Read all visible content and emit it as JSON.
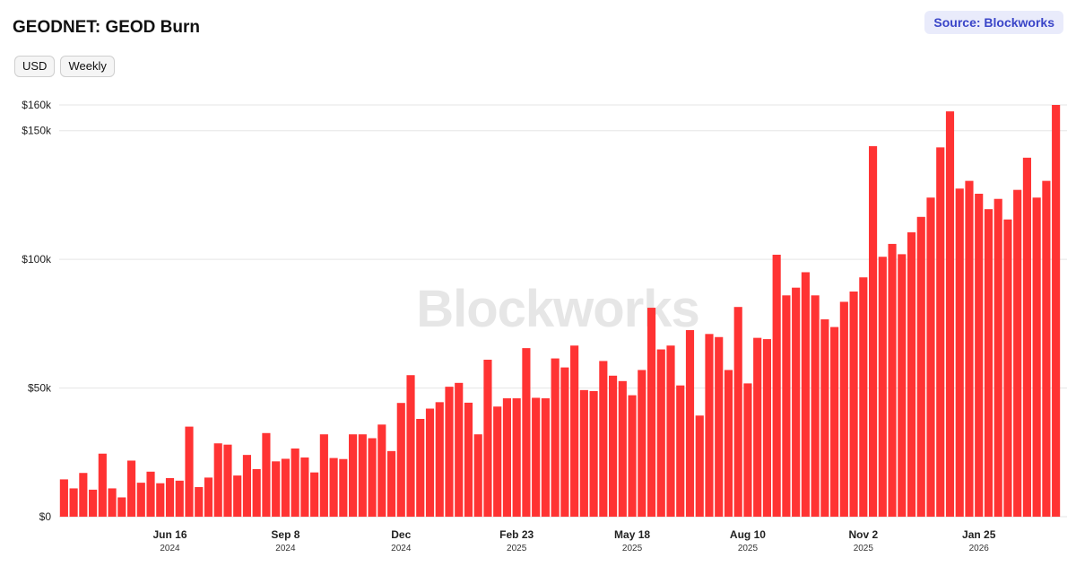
{
  "header": {
    "title": "GEODNET: GEOD Burn",
    "source_label": "Source: Blockworks"
  },
  "controls": {
    "currency_label": "USD",
    "interval_label": "Weekly"
  },
  "watermark": "Blockworks",
  "colors": {
    "bar": "#ff3333",
    "grid": "#e5e5e5",
    "source_bg": "#e9ebfb",
    "source_text": "#3a45c8"
  },
  "chart_data": {
    "type": "bar",
    "title": "GEODNET: GEOD Burn",
    "ylabel": "",
    "xlabel": "",
    "unit": "USD",
    "interval": "Weekly",
    "ylim": [
      0,
      160000
    ],
    "yticks": [
      0,
      50000,
      100000,
      150000,
      160000
    ],
    "ytick_labels": [
      "$0",
      "$50k",
      "$100k",
      "$150k",
      "$160k"
    ],
    "grid": true,
    "legend": "none",
    "xticks": [
      {
        "label": "Jun 16",
        "sub": "2024",
        "index": 11
      },
      {
        "label": "Sep 8",
        "sub": "2024",
        "index": 23
      },
      {
        "label": "Dec",
        "sub": "2024",
        "index": 35
      },
      {
        "label": "Feb 23",
        "sub": "2025",
        "index": 47
      },
      {
        "label": "May 18",
        "sub": "2025",
        "index": 59
      },
      {
        "label": "Aug 10",
        "sub": "2025",
        "index": 71
      },
      {
        "label": "Nov 2",
        "sub": "2025",
        "index": 83
      },
      {
        "label": "Jan 25",
        "sub": "2026",
        "index": 95
      }
    ],
    "values": [
      14500,
      11000,
      17000,
      10500,
      24500,
      11000,
      7500,
      21800,
      13200,
      17500,
      13000,
      15000,
      14000,
      35000,
      11500,
      15200,
      28500,
      28000,
      16000,
      24000,
      18500,
      32500,
      21500,
      22500,
      26500,
      23000,
      17200,
      32000,
      22800,
      22400,
      32000,
      32000,
      30500,
      35800,
      25500,
      44200,
      55000,
      38000,
      42000,
      44500,
      50500,
      52000,
      44300,
      32000,
      61000,
      42800,
      46000,
      46000,
      65500,
      46200,
      46000,
      61500,
      58000,
      66500,
      49200,
      48800,
      60500,
      54800,
      52700,
      47200,
      57000,
      81200,
      65000,
      66500,
      51000,
      72500,
      39300,
      71000,
      69800,
      57000,
      81500,
      51800,
      69500,
      69000,
      101800,
      86000,
      89000,
      95000,
      86000,
      76700,
      73700,
      83500,
      87500,
      93000,
      144000,
      101000,
      106000,
      102000,
      110500,
      116500,
      124000,
      143500,
      157500,
      127500,
      130500,
      125500,
      119500,
      123500,
      115500,
      127000,
      139500,
      124000,
      130500,
      160000
    ]
  }
}
